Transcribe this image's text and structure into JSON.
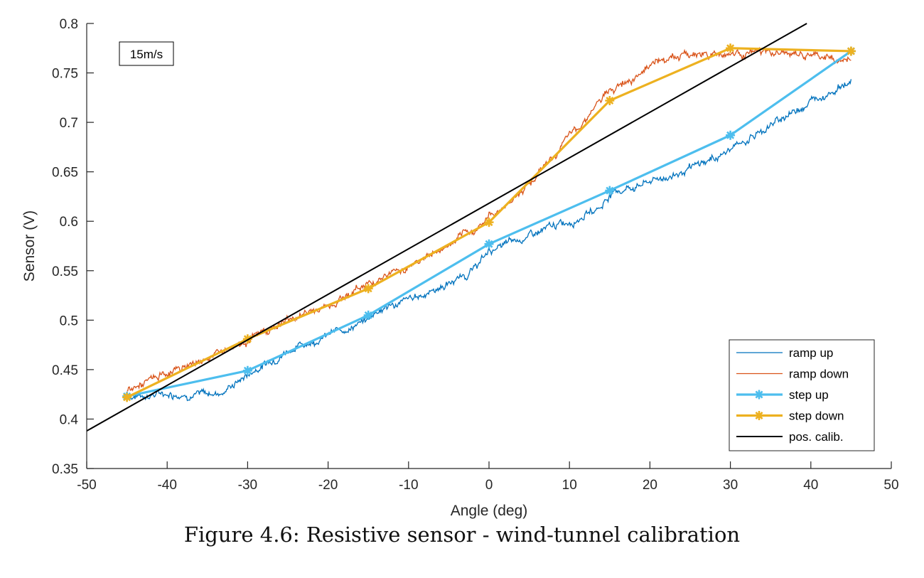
{
  "caption": "Figure 4.6: Resistive sensor - wind-tunnel calibration",
  "chart_data": {
    "type": "line",
    "xlabel": "Angle (deg)",
    "ylabel": "Sensor (V)",
    "xlim": [
      -50,
      50
    ],
    "ylim": [
      0.35,
      0.8
    ],
    "xticks": [
      -50,
      -40,
      -30,
      -20,
      -10,
      0,
      10,
      20,
      30,
      40,
      50
    ],
    "xtick_labels": [
      "-50",
      "-40",
      "-30",
      "-20",
      "-10",
      "0",
      "10",
      "20",
      "30",
      "40",
      "50"
    ],
    "yticks": [
      0.35,
      0.4,
      0.45,
      0.5,
      0.55,
      0.6,
      0.65,
      0.7,
      0.75,
      0.8
    ],
    "ytick_labels": [
      "0.35",
      "0.4",
      "0.45",
      "0.5",
      "0.55",
      "0.6",
      "0.65",
      "0.7",
      "0.75",
      "0.8"
    ],
    "grid": false,
    "legend_position": "bottom-right",
    "annotation": "15m/s",
    "series": [
      {
        "name": "ramp up",
        "color": "#0072BD",
        "style": "noisy-thin",
        "x": [
          -45,
          -40,
          -35,
          -33,
          -30,
          -25,
          -20,
          -15,
          -14,
          -10,
          -5,
          -2,
          0,
          5,
          10,
          14,
          15,
          20,
          25,
          30,
          35,
          40,
          45
        ],
        "y": [
          0.423,
          0.426,
          0.425,
          0.428,
          0.445,
          0.47,
          0.485,
          0.5,
          0.51,
          0.52,
          0.537,
          0.55,
          0.57,
          0.585,
          0.6,
          0.615,
          0.628,
          0.64,
          0.652,
          0.672,
          0.697,
          0.722,
          0.742
        ]
      },
      {
        "name": "ramp down",
        "color": "#D95319",
        "style": "noisy-thin",
        "x": [
          -45,
          -40,
          -35,
          -30,
          -25,
          -20,
          -15,
          -10,
          -5,
          -2,
          0,
          3,
          5,
          8,
          10,
          13,
          15,
          18,
          20,
          25,
          30,
          35,
          40,
          45
        ],
        "y": [
          0.428,
          0.446,
          0.462,
          0.48,
          0.5,
          0.515,
          0.538,
          0.555,
          0.575,
          0.59,
          0.605,
          0.622,
          0.64,
          0.665,
          0.685,
          0.715,
          0.73,
          0.748,
          0.76,
          0.769,
          0.77,
          0.77,
          0.767,
          0.762
        ]
      },
      {
        "name": "step up",
        "color": "#4DBEEE",
        "style": "marker-line",
        "x": [
          -45,
          -30,
          -15,
          0,
          15,
          30,
          45
        ],
        "y": [
          0.423,
          0.449,
          0.505,
          0.577,
          0.631,
          0.687,
          0.772
        ]
      },
      {
        "name": "step down",
        "color": "#EDB120",
        "style": "marker-line",
        "x": [
          -45,
          -30,
          -15,
          0,
          15,
          30,
          45
        ],
        "y": [
          0.422,
          0.481,
          0.532,
          0.599,
          0.722,
          0.775,
          0.772
        ]
      },
      {
        "name": "pos. calib.",
        "color": "#000000",
        "style": "line",
        "x": [
          -50,
          39.5
        ],
        "y": [
          0.388,
          0.8
        ]
      }
    ]
  }
}
